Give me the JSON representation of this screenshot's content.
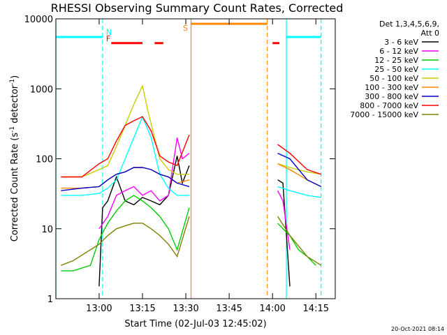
{
  "chart_data": {
    "type": "line",
    "title": "RHESSI Observing Summary Count Rates, Corrected",
    "xlabel": "Start Time (02-Jul-03 12:45:02)",
    "ylabel": {
      "pre": "Corrected Count Rate (s",
      "sup": "-1",
      "post": " detector",
      "sup2": "-1",
      "close": ")"
    },
    "x_range_hours": [
      12.7506,
      14.3617
    ],
    "y_scale": "log",
    "ylim": [
      1,
      10000
    ],
    "x_ticks": [
      {
        "h": 13.0,
        "label": "13:00"
      },
      {
        "h": 13.25,
        "label": "13:15"
      },
      {
        "h": 13.5,
        "label": "13:30"
      },
      {
        "h": 13.75,
        "label": "13:45"
      },
      {
        "h": 14.0,
        "label": "14:00"
      },
      {
        "h": 14.25,
        "label": "14:15"
      }
    ],
    "y_ticks": [
      {
        "v": 1,
        "label": "1"
      },
      {
        "v": 10,
        "label": "10"
      },
      {
        "v": 100,
        "label": "100"
      },
      {
        "v": 1000,
        "label": "1000"
      },
      {
        "v": 10000,
        "label": "10000"
      }
    ],
    "legend": {
      "header1": "Det 1,3,4,5,6,9,",
      "header2": "Att 0",
      "placement": "right-outside"
    },
    "series": [
      {
        "name": "3 - 6 keV",
        "color": "#000000",
        "segments": [
          [
            [
              13.0,
              1.5
            ],
            [
              13.02,
              20
            ],
            [
              13.05,
              25
            ],
            [
              13.1,
              55
            ],
            [
              13.15,
              25
            ],
            [
              13.2,
              22
            ],
            [
              13.25,
              28
            ],
            [
              13.3,
              25
            ],
            [
              13.35,
              22
            ],
            [
              13.4,
              30
            ],
            [
              13.45,
              110
            ],
            [
              13.48,
              45
            ],
            [
              13.52,
              80
            ]
          ],
          [
            [
              14.03,
              50
            ],
            [
              14.06,
              45
            ],
            [
              14.1,
              1.5
            ]
          ]
        ]
      },
      {
        "name": "6 - 12 keV",
        "color": "#ff00ff",
        "segments": [
          [
            [
              13.0,
              10
            ],
            [
              13.05,
              15
            ],
            [
              13.1,
              30
            ],
            [
              13.15,
              35
            ],
            [
              13.2,
              40
            ],
            [
              13.25,
              30
            ],
            [
              13.3,
              35
            ],
            [
              13.35,
              25
            ],
            [
              13.4,
              30
            ],
            [
              13.45,
              200
            ],
            [
              13.48,
              100
            ],
            [
              13.52,
              120
            ]
          ],
          [
            [
              14.03,
              35
            ],
            [
              14.06,
              25
            ],
            [
              14.1,
              5
            ]
          ]
        ]
      },
      {
        "name": "12 - 25 keV",
        "color": "#00cc00",
        "segments": [
          [
            [
              12.78,
              2.5
            ],
            [
              12.85,
              2.5
            ],
            [
              12.95,
              3
            ],
            [
              13.0,
              7
            ],
            [
              13.05,
              12
            ],
            [
              13.1,
              18
            ],
            [
              13.15,
              25
            ],
            [
              13.2,
              30
            ],
            [
              13.25,
              25
            ],
            [
              13.3,
              20
            ],
            [
              13.35,
              15
            ],
            [
              13.4,
              10
            ],
            [
              13.45,
              5
            ],
            [
              13.52,
              20
            ]
          ],
          [
            [
              14.03,
              12
            ],
            [
              14.06,
              10
            ],
            [
              14.1,
              8
            ],
            [
              14.15,
              5
            ],
            [
              14.2,
              4
            ],
            [
              14.25,
              3
            ]
          ]
        ]
      },
      {
        "name": "25 - 50 keV",
        "color": "#00ffff",
        "segments": [
          [
            [
              12.78,
              30
            ],
            [
              12.9,
              30
            ],
            [
              13.0,
              32
            ],
            [
              13.05,
              38
            ],
            [
              13.1,
              50
            ],
            [
              13.15,
              100
            ],
            [
              13.2,
              200
            ],
            [
              13.25,
              400
            ],
            [
              13.3,
              200
            ],
            [
              13.35,
              60
            ],
            [
              13.4,
              38
            ],
            [
              13.45,
              30
            ],
            [
              13.52,
              30
            ]
          ],
          [
            [
              14.03,
              40
            ],
            [
              14.1,
              35
            ],
            [
              14.2,
              30
            ],
            [
              14.28,
              28
            ]
          ]
        ]
      },
      {
        "name": "50 - 100 keV",
        "color": "#cccc00",
        "segments": [
          [
            [
              12.78,
              55
            ],
            [
              12.9,
              55
            ],
            [
              13.0,
              70
            ],
            [
              13.05,
              80
            ],
            [
              13.1,
              150
            ],
            [
              13.15,
              300
            ],
            [
              13.2,
              600
            ],
            [
              13.25,
              1100
            ],
            [
              13.28,
              500
            ],
            [
              13.35,
              100
            ],
            [
              13.4,
              70
            ],
            [
              13.45,
              60
            ],
            [
              13.52,
              60
            ]
          ],
          [
            [
              14.03,
              85
            ],
            [
              14.1,
              75
            ],
            [
              14.2,
              65
            ],
            [
              14.28,
              60
            ]
          ]
        ]
      },
      {
        "name": "100 - 300 keV",
        "color": "#ff8800",
        "segments": [
          [
            [
              12.78,
              38
            ],
            [
              12.9,
              38
            ],
            [
              13.0,
              40
            ],
            [
              13.05,
              50
            ],
            [
              13.1,
              60
            ],
            [
              13.15,
              65
            ],
            [
              13.2,
              75
            ],
            [
              13.25,
              75
            ],
            [
              13.3,
              70
            ],
            [
              13.35,
              60
            ],
            [
              13.4,
              55
            ],
            [
              13.45,
              45
            ],
            [
              13.52,
              50
            ]
          ],
          [
            [
              14.03,
              85
            ],
            [
              14.1,
              70
            ],
            [
              14.2,
              50
            ],
            [
              14.28,
              40
            ]
          ]
        ]
      },
      {
        "name": "300 - 800 keV",
        "color": "#0000cc",
        "segments": [
          [
            [
              12.78,
              35
            ],
            [
              12.9,
              38
            ],
            [
              13.0,
              40
            ],
            [
              13.05,
              50
            ],
            [
              13.1,
              60
            ],
            [
              13.15,
              65
            ],
            [
              13.2,
              75
            ],
            [
              13.25,
              75
            ],
            [
              13.3,
              70
            ],
            [
              13.35,
              60
            ],
            [
              13.4,
              55
            ],
            [
              13.45,
              45
            ],
            [
              13.52,
              40
            ]
          ],
          [
            [
              14.03,
              120
            ],
            [
              14.1,
              100
            ],
            [
              14.2,
              50
            ],
            [
              14.28,
              40
            ]
          ]
        ]
      },
      {
        "name": "800 - 7000 keV",
        "color": "#ff0000",
        "segments": [
          [
            [
              12.78,
              55
            ],
            [
              12.9,
              55
            ],
            [
              13.0,
              85
            ],
            [
              13.05,
              100
            ],
            [
              13.1,
              180
            ],
            [
              13.15,
              300
            ],
            [
              13.2,
              350
            ],
            [
              13.25,
              400
            ],
            [
              13.3,
              250
            ],
            [
              13.35,
              110
            ],
            [
              13.4,
              90
            ],
            [
              13.45,
              80
            ],
            [
              13.52,
              220
            ]
          ],
          [
            [
              14.03,
              160
            ],
            [
              14.1,
              120
            ],
            [
              14.2,
              70
            ],
            [
              14.28,
              60
            ]
          ]
        ]
      },
      {
        "name": "7000 - 15000 keV",
        "color": "#808000",
        "segments": [
          [
            [
              12.78,
              3
            ],
            [
              12.85,
              3.5
            ],
            [
              12.95,
              5
            ],
            [
              13.0,
              6
            ],
            [
              13.05,
              8
            ],
            [
              13.1,
              10
            ],
            [
              13.15,
              11
            ],
            [
              13.2,
              12
            ],
            [
              13.25,
              12
            ],
            [
              13.3,
              10
            ],
            [
              13.35,
              8
            ],
            [
              13.4,
              6
            ],
            [
              13.45,
              4
            ],
            [
              13.52,
              15
            ]
          ],
          [
            [
              14.03,
              15
            ],
            [
              14.1,
              8
            ],
            [
              14.2,
              4
            ],
            [
              14.28,
              3
            ]
          ]
        ]
      }
    ],
    "annotations": [
      {
        "text": "N",
        "h": 13.02,
        "color": "#00ffff"
      },
      {
        "text": "F",
        "h": 13.02,
        "color": "#ff0000"
      },
      {
        "text": "S",
        "h": 13.52,
        "color": "#ff8800"
      }
    ],
    "flag_lines": [
      {
        "color": "#00ffff",
        "style": "solid",
        "h": 12.7506
      },
      {
        "color": "#00ffff",
        "style": "dashed",
        "h": 13.02
      },
      {
        "color": "#00ffff",
        "style": "solid",
        "h": 14.08
      },
      {
        "color": "#00ffff",
        "style": "dashed",
        "h": 14.28
      },
      {
        "color": "#ff8800",
        "style": "solid",
        "h": 13.53
      },
      {
        "color": "#ff8800",
        "style": "dashed",
        "h": 13.97
      }
    ],
    "flag_bars": [
      {
        "color": "#00ffff",
        "level": 5500,
        "segments": [
          [
            12.7506,
            13.02
          ],
          [
            14.08,
            14.28
          ]
        ]
      },
      {
        "color": "#ff8800",
        "level": 8500,
        "segments": [
          [
            13.53,
            13.97
          ]
        ]
      },
      {
        "color": "#ff0000",
        "level": 4500,
        "segments": [
          [
            13.07,
            13.25
          ],
          [
            13.32,
            13.37
          ],
          [
            14.0,
            14.04
          ]
        ]
      }
    ]
  },
  "footer": {
    "date_stamp": "20-Oct-2021 08:14"
  }
}
